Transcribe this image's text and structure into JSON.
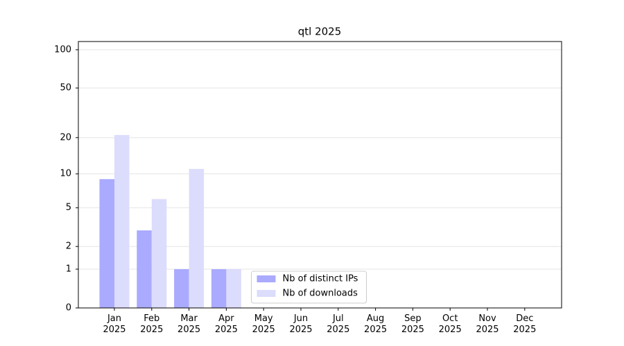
{
  "chart_data": {
    "type": "bar",
    "title": "qtl 2025",
    "categories": [
      "Jan\n2025",
      "Feb\n2025",
      "Mar\n2025",
      "Apr\n2025",
      "May\n2025",
      "Jun\n2025",
      "Jul\n2025",
      "Aug\n2025",
      "Sep\n2025",
      "Oct\n2025",
      "Nov\n2025",
      "Dec\n2025"
    ],
    "series": [
      {
        "name": "Nb of distinct IPs",
        "color": "#aaaaff",
        "values": [
          9,
          3,
          1,
          1,
          0,
          0,
          0,
          0,
          0,
          0,
          0,
          0
        ]
      },
      {
        "name": "Nb of downloads",
        "color": "#dcdcfc",
        "values": [
          21,
          6,
          11,
          1,
          0,
          0,
          0,
          0,
          0,
          0,
          0,
          0
        ]
      }
    ],
    "yscale": "symlog",
    "ylim": [
      0,
      116
    ],
    "yticks": [
      0,
      1,
      2,
      5,
      10,
      20,
      50,
      100
    ],
    "grid": true,
    "legend": "lower center"
  }
}
